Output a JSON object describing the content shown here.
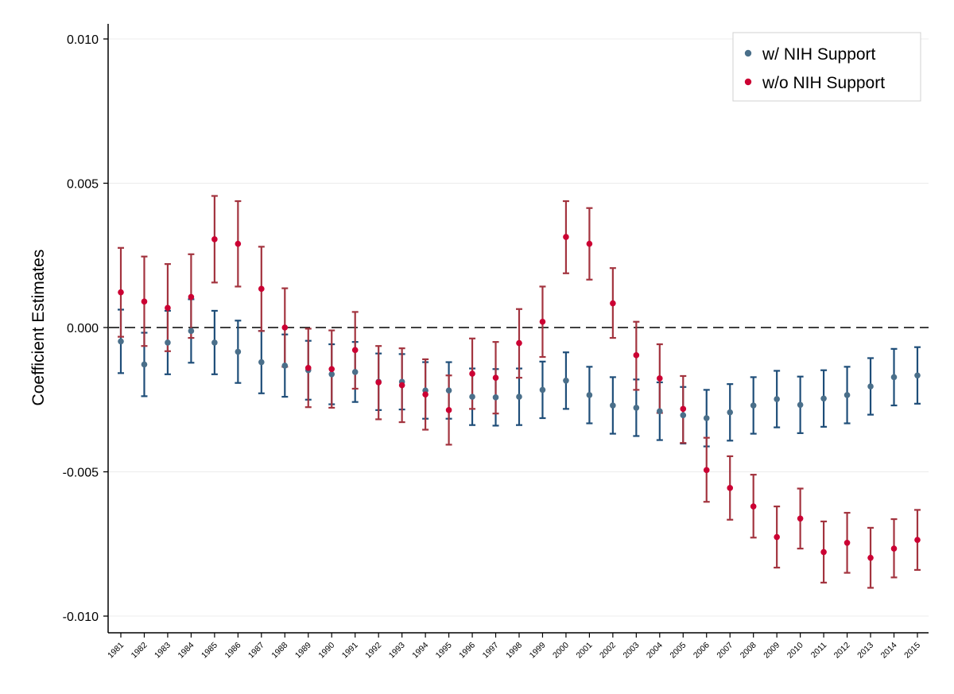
{
  "chart_data": {
    "type": "scatter",
    "error_bars": true,
    "xlabel": "",
    "ylabel": "Coefficient Estimates",
    "ylim": [
      -0.0105,
      0.0105
    ],
    "yticks": [
      0.01,
      0.005,
      0.0,
      -0.005,
      -0.01
    ],
    "ytick_labels": [
      "0.010",
      "0.005",
      "0.000",
      "-0.005",
      "-0.010"
    ],
    "grid": "horizontal",
    "reference_line": 0.0,
    "legend_position": "top-right",
    "categories": [
      "1981",
      "1982",
      "1983",
      "1984",
      "1985",
      "1986",
      "1987",
      "1988",
      "1989",
      "1990",
      "1991",
      "1992",
      "1993",
      "1994",
      "1995",
      "1996",
      "1997",
      "1998",
      "1999",
      "2000",
      "2001",
      "2002",
      "2003",
      "2004",
      "2005",
      "2006",
      "2007",
      "2008",
      "2009",
      "2010",
      "2011",
      "2012",
      "2013",
      "2014",
      "2015"
    ],
    "series": [
      {
        "name": "w/ NIH Support",
        "point_color": "#4a6f8a",
        "bar_color": "#1f4e79",
        "values": [
          -0.00048,
          -0.00128,
          -0.00052,
          -0.00012,
          -0.00052,
          -0.00084,
          -0.0012,
          -0.00132,
          -0.00148,
          -0.00162,
          -0.00154,
          -0.00188,
          -0.00188,
          -0.00218,
          -0.00218,
          -0.0024,
          -0.00242,
          -0.0024,
          -0.00216,
          -0.00184,
          -0.00234,
          -0.0027,
          -0.00278,
          -0.0029,
          -0.00304,
          -0.00314,
          -0.00294,
          -0.0027,
          -0.00248,
          -0.00268,
          -0.00246,
          -0.00234,
          -0.00204,
          -0.00172,
          -0.00166
        ],
        "lower": [
          -0.00158,
          -0.00238,
          -0.00162,
          -0.00122,
          -0.00162,
          -0.00192,
          -0.00228,
          -0.0024,
          -0.0025,
          -0.00266,
          -0.00258,
          -0.00286,
          -0.00284,
          -0.00316,
          -0.00316,
          -0.00338,
          -0.0034,
          -0.00338,
          -0.00314,
          -0.00282,
          -0.00332,
          -0.00368,
          -0.00376,
          -0.0039,
          -0.00402,
          -0.00412,
          -0.00392,
          -0.00368,
          -0.00346,
          -0.00366,
          -0.00344,
          -0.00332,
          -0.00302,
          -0.0027,
          -0.00264
        ],
        "upper": [
          0.00062,
          -0.00018,
          0.00058,
          0.00098,
          0.00058,
          0.00024,
          -0.00012,
          -0.00024,
          -0.00046,
          -0.00058,
          -0.0005,
          -0.0009,
          -0.00092,
          -0.0012,
          -0.0012,
          -0.00142,
          -0.00144,
          -0.00142,
          -0.00118,
          -0.00086,
          -0.00136,
          -0.00172,
          -0.0018,
          -0.0019,
          -0.00206,
          -0.00216,
          -0.00196,
          -0.00172,
          -0.0015,
          -0.0017,
          -0.00148,
          -0.00136,
          -0.00106,
          -0.00074,
          -0.00068
        ]
      },
      {
        "name": "w/o NIH Support",
        "point_color": "#cc0033",
        "bar_color": "#a3343f",
        "values": [
          0.00122,
          0.0009,
          0.00068,
          0.00106,
          0.00306,
          0.0029,
          0.00134,
          0.0,
          -0.0014,
          -0.00144,
          -0.00078,
          -0.0019,
          -0.002,
          -0.00232,
          -0.00286,
          -0.0016,
          -0.00174,
          -0.00054,
          0.0002,
          0.00314,
          0.0029,
          0.00084,
          -0.00096,
          -0.00176,
          -0.00282,
          -0.00494,
          -0.00556,
          -0.0062,
          -0.00726,
          -0.00662,
          -0.00778,
          -0.00746,
          -0.00798,
          -0.00766,
          -0.00736
        ],
        "lower": [
          -0.00032,
          -0.00064,
          -0.00082,
          -0.00036,
          0.00156,
          0.00142,
          -0.00012,
          -0.00136,
          -0.00276,
          -0.00278,
          -0.00212,
          -0.00318,
          -0.00328,
          -0.00354,
          -0.00406,
          -0.00282,
          -0.00298,
          -0.00174,
          -0.00102,
          0.00188,
          0.00166,
          -0.00036,
          -0.00216,
          -0.00296,
          -0.004,
          -0.00604,
          -0.00666,
          -0.00728,
          -0.00832,
          -0.00766,
          -0.00884,
          -0.0085,
          -0.00902,
          -0.00866,
          -0.0084
        ],
        "upper": [
          0.00276,
          0.00246,
          0.0022,
          0.00254,
          0.00456,
          0.00438,
          0.0028,
          0.00136,
          -4e-05,
          -0.0001,
          0.00054,
          -0.00064,
          -0.00072,
          -0.0011,
          -0.00166,
          -0.00038,
          -0.0005,
          0.00064,
          0.00142,
          0.00438,
          0.00414,
          0.00206,
          0.0002,
          -0.00058,
          -0.00168,
          -0.00382,
          -0.00446,
          -0.0051,
          -0.0062,
          -0.00558,
          -0.00672,
          -0.00642,
          -0.00694,
          -0.00664,
          -0.00632
        ]
      }
    ]
  }
}
